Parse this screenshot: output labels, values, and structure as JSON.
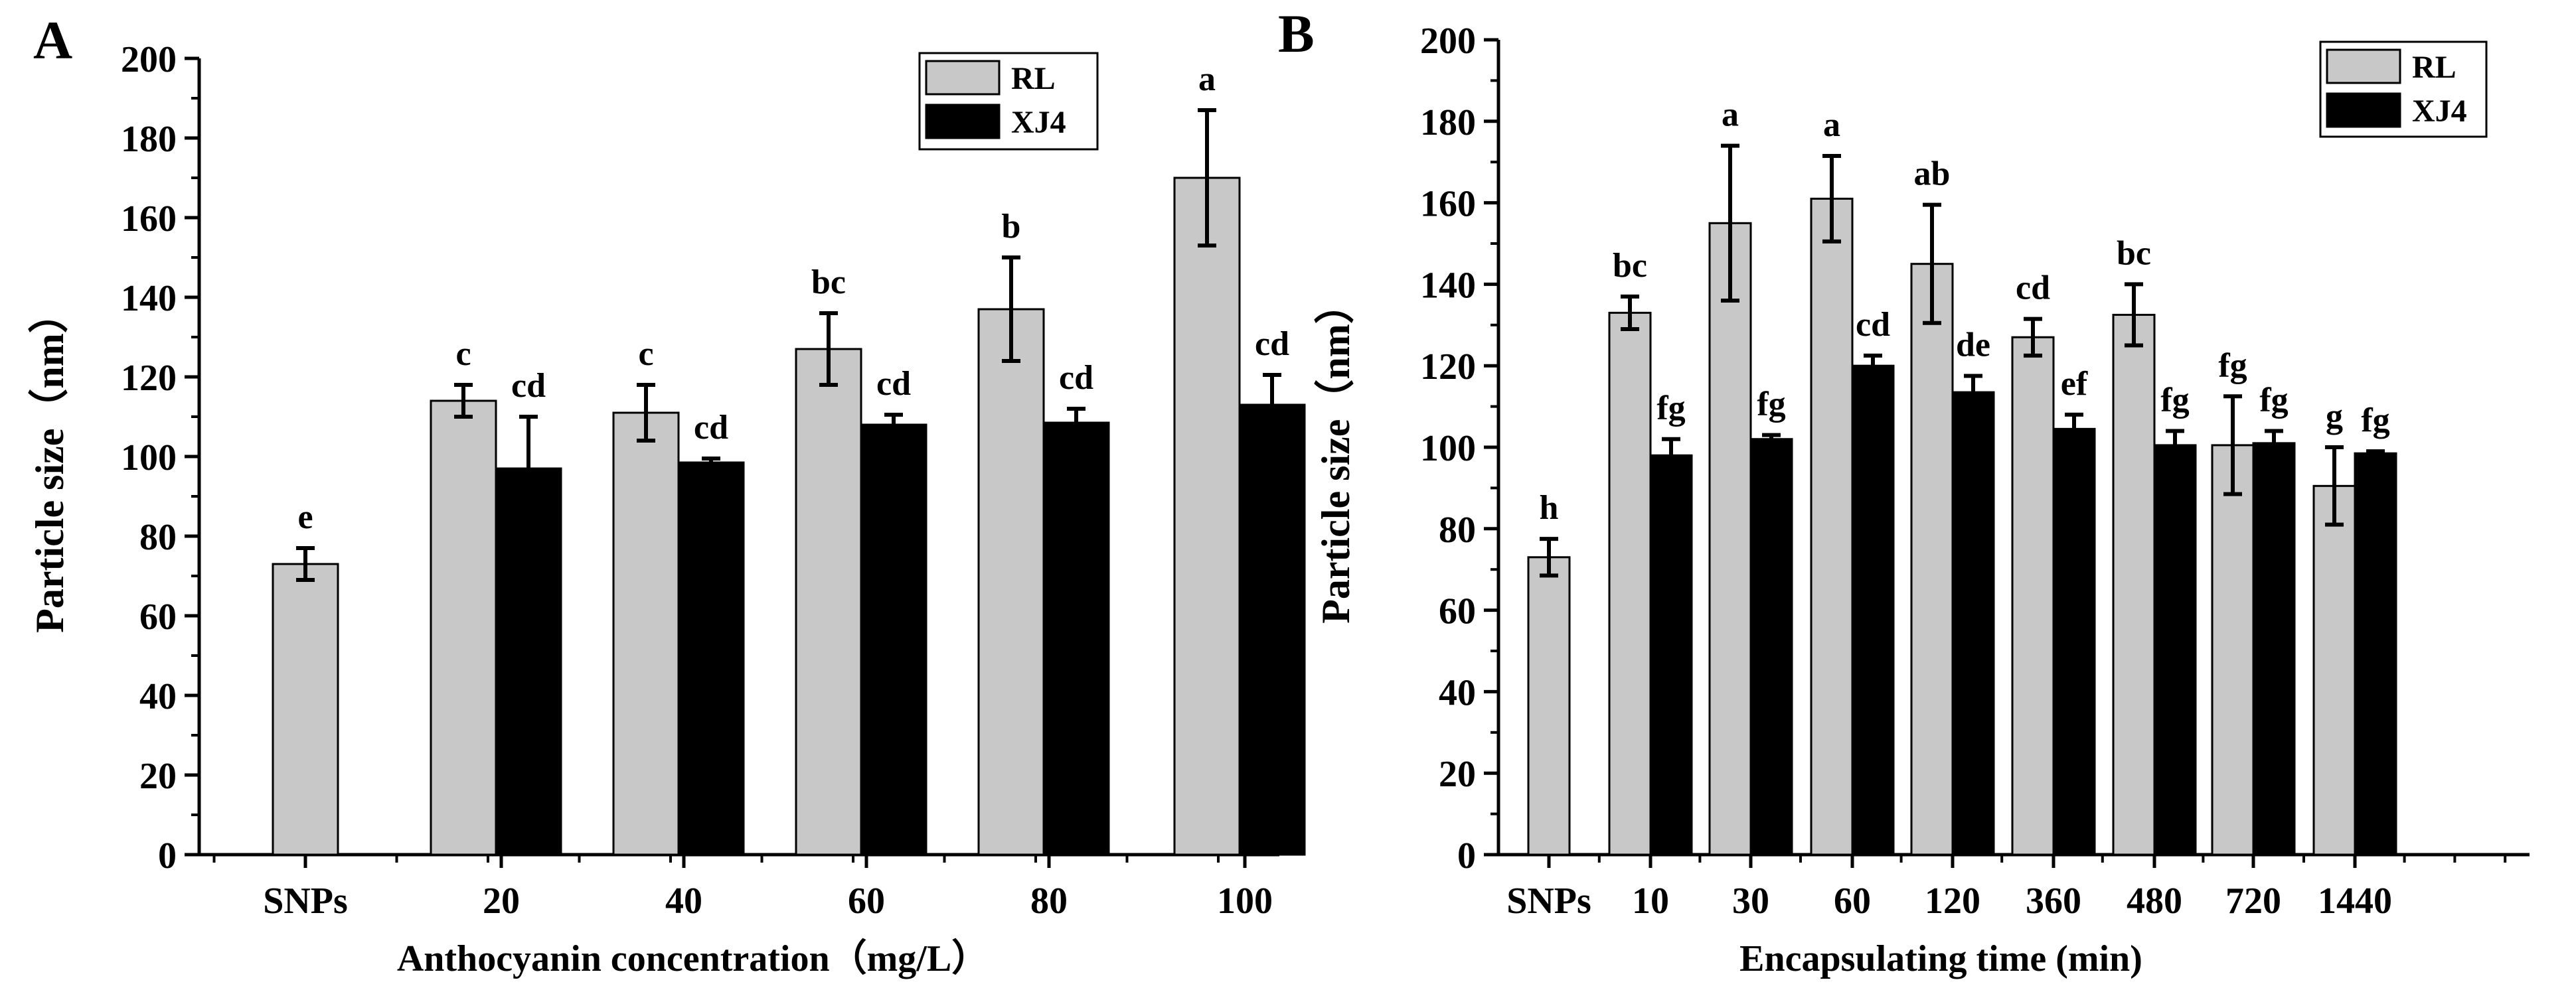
{
  "colors": {
    "RL": "#c8c8c8",
    "XJ4": "#000000",
    "axis": "#000000",
    "background": "#ffffff"
  },
  "chart_data": [
    {
      "type": "bar",
      "panel_label": "A",
      "xlabel": "Anthocyanin concentration（mg/L）",
      "ylabel": "Particle size（nm）",
      "ylim": [
        0,
        200
      ],
      "yticks": [
        0,
        20,
        40,
        60,
        80,
        100,
        120,
        140,
        160,
        180,
        200
      ],
      "categories": [
        "SNPs",
        "20",
        "40",
        "60",
        "80",
        "100"
      ],
      "legend": {
        "position": "top-right",
        "entries": [
          "RL",
          "XJ4"
        ]
      },
      "series": [
        {
          "name": "RL",
          "values": [
            73,
            114,
            111,
            127,
            137,
            170
          ],
          "errors": [
            4,
            4,
            7,
            9,
            13,
            17
          ],
          "labels": [
            "e",
            "c",
            "c",
            "bc",
            "b",
            "a"
          ]
        },
        {
          "name": "XJ4",
          "values": [
            null,
            97,
            98.5,
            108,
            108.5,
            113
          ],
          "errors": [
            null,
            13,
            1,
            2.5,
            3.5,
            7.5
          ],
          "labels": [
            "",
            "cd",
            "cd",
            "cd",
            "cd",
            "cd"
          ]
        }
      ]
    },
    {
      "type": "bar",
      "panel_label": "B",
      "xlabel": "Encapsulating time (min)",
      "ylabel": "Particle size（nm）",
      "ylim": [
        0,
        200
      ],
      "yticks": [
        0,
        20,
        40,
        60,
        80,
        100,
        120,
        140,
        160,
        180,
        200
      ],
      "categories": [
        "SNPs",
        "10",
        "30",
        "60",
        "120",
        "360",
        "480",
        "720",
        "1440"
      ],
      "legend": {
        "position": "top-right",
        "entries": [
          "RL",
          "XJ4"
        ]
      },
      "series": [
        {
          "name": "RL",
          "values": [
            73,
            133,
            155,
            161,
            145,
            127,
            132.5,
            100.5,
            90.5
          ],
          "errors": [
            4.5,
            4,
            19,
            10.5,
            14.5,
            4.5,
            7.5,
            12,
            9.5
          ],
          "labels": [
            "h",
            "bc",
            "a",
            "a",
            "ab",
            "cd",
            "bc",
            "fg",
            "g"
          ]
        },
        {
          "name": "XJ4",
          "values": [
            null,
            98,
            102,
            120,
            113.5,
            104.5,
            100.5,
            101,
            98.5
          ],
          "errors": [
            null,
            4,
            1,
            2.5,
            4,
            3.5,
            3.5,
            3,
            0.5
          ],
          "labels": [
            "",
            "fg",
            "fg",
            "cd",
            "de",
            "ef",
            "fg",
            "fg",
            "fg"
          ]
        }
      ]
    }
  ]
}
